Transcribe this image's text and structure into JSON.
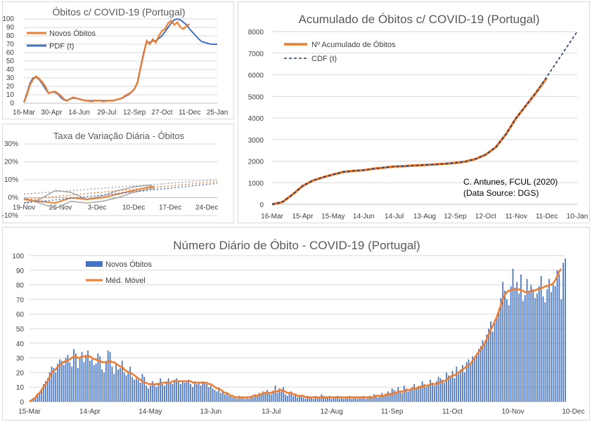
{
  "colors": {
    "orange": "#ed7d31",
    "blue": "#4472c4",
    "navy": "#1f3864",
    "bar": "#4472c4",
    "gray": "#a5a5a5",
    "title": "#595959"
  },
  "chart_data": [
    {
      "id": "obitos",
      "type": "line",
      "title": "Óbitos c/ COVID-19 (Portugal)",
      "xlabels": [
        "16-Mar",
        "30-Apr",
        "14-Jun",
        "29-Jul",
        "12-Sep",
        "27-Oct",
        "11-Dec",
        "25-Jan"
      ],
      "ylabels": [
        "0",
        "10",
        "20",
        "30",
        "40",
        "50",
        "60",
        "70",
        "80",
        "90",
        "100"
      ],
      "ylim": [
        0,
        100
      ],
      "xlim": [
        0,
        315
      ],
      "legend": [
        "Novos Óbitos",
        "PDF (t)"
      ],
      "series": [
        {
          "name": "Novos Óbitos",
          "x": [
            0,
            5,
            10,
            15,
            20,
            25,
            30,
            35,
            40,
            45,
            50,
            55,
            60,
            65,
            70,
            75,
            80,
            85,
            90,
            95,
            100,
            105,
            110,
            115,
            120,
            125,
            130,
            135,
            140,
            145,
            150,
            155,
            160,
            165,
            170,
            175,
            180,
            185,
            190,
            195,
            200,
            205,
            210,
            215,
            220,
            225,
            230,
            235,
            240,
            245,
            250,
            255,
            260,
            265,
            270
          ],
          "y": [
            1,
            10,
            22,
            28,
            32,
            29,
            25,
            20,
            12,
            13,
            14,
            12,
            9,
            5,
            3,
            5,
            7,
            6,
            5,
            4,
            3,
            3,
            2,
            3,
            3,
            3,
            2,
            3,
            3,
            3,
            4,
            5,
            6,
            9,
            11,
            13,
            17,
            24,
            42,
            58,
            74,
            70,
            76,
            72,
            80,
            86,
            88,
            95,
            98,
            93,
            96,
            90,
            88,
            92,
            94
          ]
        },
        {
          "name": "PDF (t)",
          "x": [
            0,
            5,
            10,
            15,
            20,
            25,
            30,
            35,
            40,
            45,
            50,
            55,
            60,
            65,
            70,
            75,
            80,
            85,
            90,
            95,
            100,
            105,
            110,
            115,
            120,
            125,
            130,
            135,
            140,
            145,
            150,
            155,
            160,
            165,
            170,
            175,
            180,
            185,
            190,
            195,
            200,
            205,
            210,
            215,
            220,
            225,
            230,
            235,
            240,
            245,
            250,
            255,
            260,
            265,
            270,
            275,
            280,
            285,
            290,
            295,
            300,
            305,
            310,
            315
          ],
          "y": [
            1,
            12,
            24,
            30,
            31,
            28,
            23,
            17,
            12,
            13,
            13,
            11,
            7,
            4,
            3,
            5,
            6,
            6,
            5,
            4,
            3,
            3,
            3,
            3,
            3,
            3,
            3,
            3,
            3,
            3,
            4,
            5,
            6,
            8,
            10,
            13,
            17,
            25,
            42,
            60,
            72,
            72,
            74,
            74,
            77,
            80,
            85,
            90,
            95,
            99,
            100,
            99,
            96,
            93,
            88,
            84,
            80,
            76,
            73,
            72,
            71,
            70,
            70,
            70
          ]
        }
      ]
    },
    {
      "id": "taxa",
      "type": "line",
      "title": "Taxa de Variação Diária - Óbitos",
      "xlabels": [
        "19-Nov",
        "26-Nov",
        "3-Dec",
        "10-Dec",
        "17-Dec",
        "24-Dec"
      ],
      "ylabels": [
        "30%",
        "20%",
        "10%",
        "0%",
        "-10%"
      ],
      "ylim": [
        -10,
        30
      ],
      "xlim": [
        0,
        37
      ]
    },
    {
      "id": "acumulado",
      "type": "line",
      "title": "Acumulado de Óbitos c/ COVID-19 (Portugal)",
      "xlabels": [
        "16-Mar",
        "15-Apr",
        "15-May",
        "14-Jun",
        "14-Jul",
        "13-Aug",
        "12-Sep",
        "12-Oct",
        "11-Nov",
        "11-Dec",
        "10-Jan"
      ],
      "ylabels": [
        "0",
        "1000",
        "2000",
        "3000",
        "4000",
        "5000",
        "6000",
        "7000",
        "8000"
      ],
      "ylim": [
        0,
        8000
      ],
      "xlim": [
        0,
        300
      ],
      "legend": [
        "Nº Acumulado de Óbitos",
        "CDF (t)"
      ],
      "annotation": [
        "C. Antunes, FCUL (2020)",
        "(Data Source: DGS)"
      ],
      "series": [
        {
          "name": "Nº Acumulado de Óbitos",
          "x": [
            0,
            10,
            20,
            30,
            40,
            50,
            60,
            70,
            80,
            90,
            100,
            110,
            120,
            130,
            140,
            150,
            160,
            170,
            180,
            190,
            200,
            210,
            220,
            230,
            240,
            250,
            260,
            270
          ],
          "y": [
            0,
            100,
            450,
            850,
            1100,
            1250,
            1380,
            1500,
            1550,
            1580,
            1650,
            1700,
            1750,
            1770,
            1800,
            1820,
            1850,
            1880,
            1920,
            1980,
            2100,
            2300,
            2650,
            3250,
            4000,
            4600,
            5200,
            5850
          ]
        },
        {
          "name": "CDF (t)",
          "x": [
            0,
            10,
            20,
            30,
            40,
            50,
            60,
            70,
            80,
            90,
            100,
            110,
            120,
            130,
            140,
            150,
            160,
            170,
            180,
            190,
            200,
            210,
            220,
            230,
            240,
            250,
            260,
            270,
            280,
            290,
            300
          ],
          "y": [
            0,
            100,
            450,
            850,
            1100,
            1250,
            1380,
            1500,
            1550,
            1580,
            1650,
            1700,
            1750,
            1770,
            1800,
            1820,
            1850,
            1880,
            1920,
            1980,
            2100,
            2300,
            2650,
            3250,
            4000,
            4600,
            5200,
            5900,
            6600,
            7300,
            8000
          ]
        }
      ]
    },
    {
      "id": "diario",
      "type": "bar",
      "title": "Número Diário de Óbito - COVID-19 (Portugal)",
      "xlabels": [
        "15-Mar",
        "14-Apr",
        "14-May",
        "13-Jun",
        "13-Jul",
        "12-Aug",
        "11-Sep",
        "11-Oct",
        "10-Nov",
        "10-Dec"
      ],
      "ylabels": [
        "0",
        "10",
        "20",
        "30",
        "40",
        "50",
        "60",
        "70",
        "80",
        "90",
        "100"
      ],
      "ylim": [
        0,
        100
      ],
      "xlim": [
        0,
        270
      ],
      "legend": [
        "Novos Óbitos",
        "Méd. Móvel"
      ],
      "series": [
        {
          "name": "Novos Óbitos",
          "values": [
            0,
            1,
            2,
            3,
            5,
            6,
            9,
            12,
            14,
            16,
            20,
            24,
            23,
            20,
            26,
            29,
            28,
            25,
            30,
            32,
            27,
            24,
            36,
            33,
            23,
            30,
            34,
            27,
            32,
            35,
            28,
            29,
            25,
            26,
            33,
            31,
            22,
            20,
            28,
            35,
            34,
            24,
            19,
            26,
            22,
            23,
            28,
            20,
            18,
            21,
            24,
            17,
            15,
            16,
            15,
            13,
            19,
            17,
            11,
            9,
            11,
            14,
            12,
            10,
            13,
            16,
            12,
            11,
            14,
            16,
            13,
            12,
            15,
            16,
            14,
            12,
            14,
            13,
            14,
            15,
            12,
            10,
            14,
            12,
            13,
            11,
            14,
            13,
            12,
            10,
            11,
            9,
            8,
            7,
            9,
            6,
            7,
            5,
            6,
            4,
            4,
            3,
            3,
            2,
            4,
            3,
            3,
            2,
            3,
            2,
            4,
            3,
            5,
            4,
            6,
            5,
            7,
            6,
            8,
            6,
            5,
            7,
            11,
            6,
            9,
            7,
            10,
            5,
            4,
            6,
            7,
            4,
            5,
            3,
            4,
            4,
            3,
            2,
            4,
            3,
            3,
            2,
            4,
            3,
            3,
            5,
            4,
            3,
            3,
            4,
            2,
            3,
            3,
            4,
            2,
            3,
            2,
            3,
            3,
            4,
            2,
            3,
            3,
            2,
            3,
            3,
            4,
            2,
            3,
            4,
            3,
            5,
            4,
            3,
            4,
            6,
            4,
            5,
            7,
            6,
            9,
            8,
            7,
            10,
            7,
            6,
            11,
            9,
            7,
            8,
            10,
            12,
            9,
            10,
            11,
            14,
            12,
            10,
            11,
            15,
            13,
            11,
            14,
            17,
            16,
            15,
            13,
            20,
            18,
            17,
            21,
            16,
            24,
            19,
            22,
            25,
            20,
            27,
            29,
            26,
            31,
            30,
            33,
            36,
            38,
            42,
            40,
            46,
            50,
            55,
            48,
            56,
            59,
            63,
            71,
            82,
            76,
            70,
            66,
            79,
            91,
            78,
            82,
            74,
            87,
            69,
            73,
            84,
            76,
            80,
            77,
            71,
            74,
            79,
            86,
            72,
            68,
            77,
            84,
            75,
            80,
            79,
            90,
            87,
            70,
            95,
            98
          ]
        },
        {
          "name": "Méd. Móvel",
          "values": [
            0,
            1,
            2,
            3,
            5,
            6,
            8,
            10,
            12,
            14,
            17,
            20,
            21,
            22,
            24,
            25,
            26,
            27,
            28,
            28,
            29,
            30,
            31,
            31,
            30,
            30,
            31,
            31,
            31,
            31,
            31,
            30,
            29,
            29,
            28,
            28,
            27,
            27,
            27,
            27,
            28,
            27,
            27,
            26,
            25,
            24,
            24,
            22,
            21,
            20,
            20,
            19,
            18,
            17,
            16,
            15,
            14,
            13,
            13,
            12,
            12,
            12,
            12,
            12,
            12,
            12,
            13,
            13,
            13,
            13,
            13,
            14,
            14,
            14,
            14,
            14,
            14,
            14,
            14,
            14,
            14,
            13,
            13,
            13,
            13,
            13,
            13,
            13,
            13,
            12,
            12,
            11,
            10,
            9,
            9,
            8,
            7,
            6,
            6,
            5,
            4,
            4,
            3,
            3,
            3,
            3,
            3,
            3,
            3,
            3,
            3,
            4,
            4,
            4,
            5,
            5,
            6,
            6,
            6,
            6,
            6,
            7,
            7,
            7,
            8,
            8,
            7,
            7,
            6,
            6,
            6,
            5,
            5,
            4,
            4,
            4,
            4,
            3,
            3,
            3,
            3,
            3,
            3,
            3,
            3,
            3,
            3,
            3,
            3,
            3,
            3,
            3,
            3,
            3,
            3,
            3,
            3,
            3,
            3,
            3,
            3,
            3,
            3,
            3,
            3,
            3,
            3,
            3,
            3,
            3,
            3,
            3,
            4,
            4,
            4,
            4,
            4,
            5,
            5,
            5,
            5,
            6,
            6,
            7,
            7,
            7,
            7,
            8,
            8,
            8,
            9,
            9,
            9,
            10,
            10,
            10,
            11,
            11,
            11,
            12,
            12,
            12,
            12,
            13,
            13,
            14,
            14,
            15,
            16,
            17,
            18,
            18,
            19,
            20,
            21,
            22,
            23,
            24,
            25,
            26,
            28,
            30,
            32,
            34,
            36,
            38,
            40,
            43,
            46,
            49,
            52,
            55,
            58,
            62,
            66,
            70,
            73,
            75,
            76,
            76,
            77,
            77,
            77,
            77,
            76,
            76,
            75,
            75,
            75,
            76,
            76,
            76,
            77,
            77,
            78,
            78,
            79,
            79,
            80,
            80,
            81,
            83,
            86,
            89,
            91
          ]
        }
      ]
    }
  ]
}
